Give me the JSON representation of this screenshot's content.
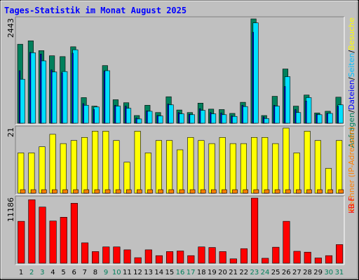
{
  "title": "Tages-Statistik im Monat August 2025",
  "side_labels": {
    "top": {
      "parts": [
        {
          "text": "Anfragen",
          "color": "#00805c"
        },
        {
          "text": "/",
          "color": "#000000"
        },
        {
          "text": "Dateien",
          "color": "#0000ff"
        },
        {
          "text": "/",
          "color": "#000000"
        },
        {
          "text": "Seiten",
          "color": "#00c0ff"
        },
        {
          "text": "/",
          "color": "#000000"
        },
        {
          "text": "Besuche",
          "color": "#ffff00"
        }
      ]
    },
    "middle": {
      "parts": [
        {
          "text": "Rechner (IP-Adressen)",
          "color": "#ff8000"
        }
      ]
    },
    "bottom": {
      "parts": [
        {
          "text": "kB F",
          "color": "#ff0000"
        }
      ]
    }
  },
  "colors": {
    "hits": "#00805c",
    "files": "#0000ff",
    "pages": "#00e0ff",
    "visits": "#ffff00",
    "sites": "#ff8000",
    "kbytes": "#ff0000",
    "weekend_label": "#00805c",
    "weekday_label": "#000000",
    "panel_bg": "#c0c0c0"
  },
  "chart_data": [
    {
      "type": "bar",
      "title": "",
      "ymax_label": "2443",
      "ylim": [
        0,
        2443
      ],
      "categories": [
        "1",
        "2",
        "3",
        "4",
        "5",
        "6",
        "7",
        "8",
        "9",
        "10",
        "11",
        "12",
        "13",
        "14",
        "15",
        "16",
        "17",
        "18",
        "19",
        "20",
        "21",
        "22",
        "23",
        "24",
        "25",
        "26",
        "27",
        "28",
        "29",
        "30",
        "31"
      ],
      "weekend_days": [
        "2",
        "3",
        "9",
        "10",
        "16",
        "17",
        "23",
        "24",
        "30",
        "31"
      ],
      "series": [
        {
          "key": "hits",
          "values": [
            1850,
            1930,
            1700,
            1580,
            1560,
            1790,
            600,
            400,
            1350,
            550,
            480,
            180,
            420,
            250,
            620,
            310,
            250,
            470,
            330,
            320,
            230,
            490,
            2443,
            180,
            630,
            1270,
            400,
            660,
            240,
            280,
            610
          ]
        },
        {
          "key": "files",
          "values": [
            1230,
            1660,
            1620,
            1250,
            1180,
            1640,
            460,
            320,
            1220,
            420,
            400,
            120,
            290,
            180,
            450,
            250,
            210,
            340,
            250,
            240,
            170,
            420,
            2130,
            150,
            420,
            860,
            320,
            520,
            210,
            230,
            400
          ]
        },
        {
          "key": "pages",
          "values": [
            1030,
            1650,
            1460,
            1200,
            1210,
            1720,
            420,
            380,
            1230,
            400,
            350,
            100,
            280,
            170,
            430,
            220,
            200,
            300,
            220,
            200,
            160,
            390,
            2350,
            110,
            400,
            1090,
            250,
            600,
            200,
            230,
            430
          ]
        }
      ]
    },
    {
      "type": "bar",
      "title": "",
      "ymax_label": "21",
      "ylim": [
        0,
        21
      ],
      "categories": [
        "1",
        "2",
        "3",
        "4",
        "5",
        "6",
        "7",
        "8",
        "9",
        "10",
        "11",
        "12",
        "13",
        "14",
        "15",
        "16",
        "17",
        "18",
        "19",
        "20",
        "21",
        "22",
        "23",
        "24",
        "25",
        "26",
        "27",
        "28",
        "29",
        "30",
        "31"
      ],
      "series": [
        {
          "key": "visits",
          "values": [
            13,
            13,
            15,
            19,
            16,
            17,
            18,
            20,
            20,
            17,
            10,
            20,
            13,
            17,
            17,
            14,
            18,
            17,
            16,
            18,
            16,
            16,
            18,
            18,
            16,
            21,
            13,
            20,
            17,
            8,
            17
          ]
        },
        {
          "key": "sites",
          "values": [
            1,
            1,
            1,
            1,
            1,
            1,
            1,
            1,
            1,
            1,
            1,
            1,
            1,
            1,
            1,
            1,
            1,
            1,
            1,
            1,
            1,
            1,
            1,
            1,
            1,
            1,
            1,
            1,
            1,
            1,
            1
          ]
        }
      ]
    },
    {
      "type": "bar",
      "title": "",
      "ymax_label": "11186",
      "ylim": [
        0,
        11186
      ],
      "categories": [
        "1",
        "2",
        "3",
        "4",
        "5",
        "6",
        "7",
        "8",
        "9",
        "10",
        "11",
        "12",
        "13",
        "14",
        "15",
        "16",
        "17",
        "18",
        "19",
        "20",
        "21",
        "22",
        "23",
        "24",
        "25",
        "26",
        "27",
        "28",
        "29",
        "30",
        "31"
      ],
      "series": [
        {
          "key": "kbytes",
          "values": [
            7200,
            10900,
            9650,
            7250,
            7900,
            10300,
            3500,
            2000,
            2800,
            2800,
            2300,
            950,
            2300,
            1300,
            2000,
            2100,
            1300,
            2800,
            2700,
            2000,
            750,
            2500,
            11186,
            850,
            2750,
            7200,
            2050,
            1900,
            900,
            1300,
            3200
          ]
        }
      ]
    }
  ]
}
